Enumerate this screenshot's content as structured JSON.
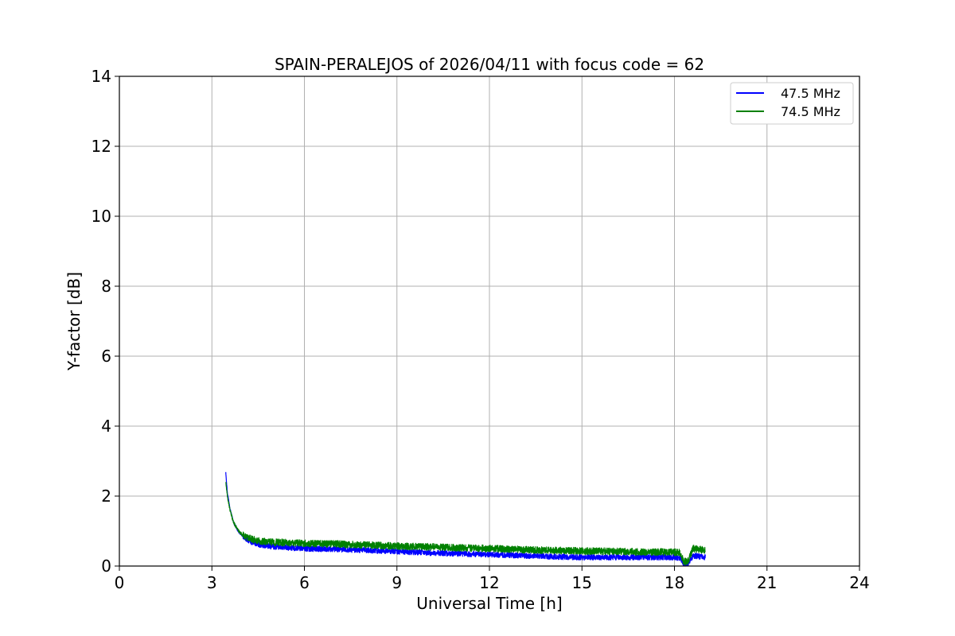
{
  "chart_data": {
    "type": "line",
    "title": "SPAIN-PERALEJOS of 2026/04/11 with focus code = 62",
    "xlabel": "Universal Time [h]",
    "ylabel": "Y-factor [dB]",
    "xlim": [
      0,
      24
    ],
    "ylim": [
      0,
      14
    ],
    "xticks": [
      0,
      3,
      6,
      9,
      12,
      15,
      18,
      21,
      24
    ],
    "yticks": [
      0,
      2,
      4,
      6,
      8,
      10,
      12,
      14
    ],
    "xtick_labels": [
      "0",
      "3",
      "6",
      "9",
      "12",
      "15",
      "18",
      "21",
      "24"
    ],
    "ytick_labels": [
      "0",
      "2",
      "4",
      "6",
      "8",
      "10",
      "12",
      "14"
    ],
    "grid": true,
    "legend_position": "top-right",
    "legend_labels": [
      "47.5 MHz",
      "74.5 MHz"
    ],
    "series": [
      {
        "name": "47.5 MHz",
        "color": "#0000ff",
        "noise": 0.08,
        "x": [
          3.45,
          3.5,
          3.6,
          3.7,
          3.85,
          4.0,
          4.25,
          4.5,
          5.0,
          6.0,
          7.0,
          8.0,
          9.0,
          10.0,
          11.0,
          12.0,
          13.0,
          14.0,
          15.0,
          16.0,
          17.0,
          18.0,
          18.2,
          18.3,
          18.45,
          18.6,
          19.0
        ],
        "y": [
          2.7,
          2.1,
          1.6,
          1.25,
          1.0,
          0.85,
          0.7,
          0.62,
          0.55,
          0.5,
          0.48,
          0.45,
          0.42,
          0.38,
          0.35,
          0.33,
          0.3,
          0.27,
          0.25,
          0.25,
          0.25,
          0.25,
          0.22,
          0.05,
          0.08,
          0.3,
          0.25
        ]
      },
      {
        "name": "74.5 MHz",
        "color": "#008000",
        "noise": 0.1,
        "x": [
          3.45,
          3.5,
          3.6,
          3.7,
          3.85,
          4.0,
          4.25,
          4.5,
          5.0,
          6.0,
          7.0,
          8.0,
          9.0,
          10.0,
          11.0,
          12.0,
          13.0,
          14.0,
          15.0,
          16.0,
          17.0,
          18.0,
          18.2,
          18.3,
          18.45,
          18.6,
          19.0
        ],
        "y": [
          2.4,
          2.0,
          1.55,
          1.25,
          1.02,
          0.88,
          0.78,
          0.72,
          0.68,
          0.65,
          0.63,
          0.6,
          0.57,
          0.55,
          0.52,
          0.5,
          0.47,
          0.45,
          0.43,
          0.42,
          0.4,
          0.4,
          0.38,
          0.12,
          0.15,
          0.5,
          0.45
        ]
      }
    ]
  }
}
